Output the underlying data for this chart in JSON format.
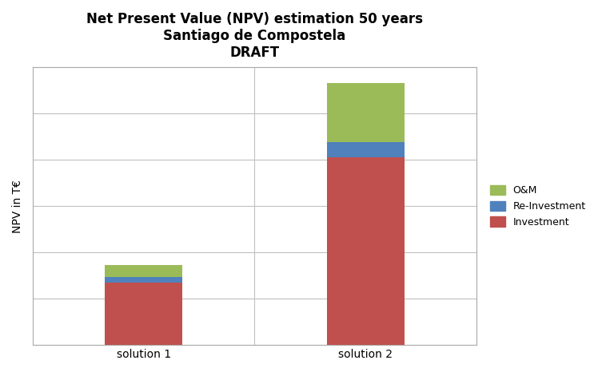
{
  "title_line1": "Net Present Value (NPV) estimation 50 years",
  "title_line2": "Santiago de Compostela",
  "title_line3": "DRAFT",
  "categories": [
    "solution 1",
    "solution 2"
  ],
  "investment": [
    1800,
    5400
  ],
  "reinvestment": [
    150,
    450
  ],
  "om": [
    350,
    1700
  ],
  "colors": {
    "investment": "#C0504D",
    "reinvestment": "#4F81BD",
    "om": "#9BBB59"
  },
  "ylabel": "NPV in T€",
  "background_color": "#FFFFFF",
  "plot_bg_color": "#FFFFFF",
  "ylim": [
    0,
    8000
  ],
  "num_gridlines": 6,
  "bar_width": 0.35,
  "title_fontsize": 12,
  "axis_fontsize": 10,
  "legend_fontsize": 9,
  "figsize": [
    7.53,
    4.66
  ],
  "dpi": 100
}
